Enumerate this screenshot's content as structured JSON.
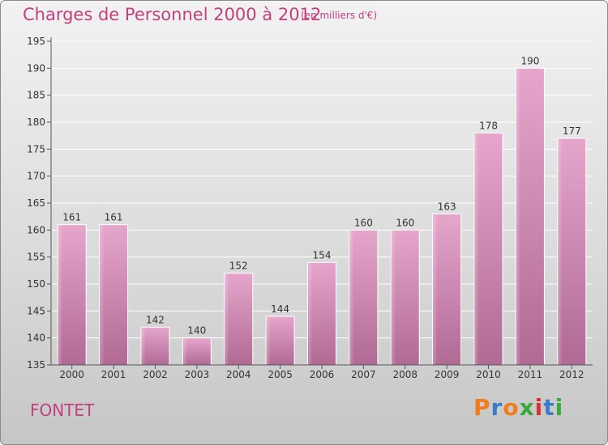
{
  "header": {
    "title": "Charges de Personnel 2000 à 2012",
    "subtitle": "(en milliers d'€)"
  },
  "footer": {
    "place": "FONTET",
    "logo_text": "Proxiti",
    "logo_colors": [
      "#f07c1a",
      "#3a7cc9",
      "#f07c1a",
      "#3aa83a",
      "#d9322b",
      "#3a7cc9",
      "#3aa83a"
    ]
  },
  "chart_data": {
    "type": "bar",
    "categories": [
      "2000",
      "2001",
      "2002",
      "2003",
      "2004",
      "2005",
      "2006",
      "2007",
      "2008",
      "2009",
      "2010",
      "2011",
      "2012"
    ],
    "values": [
      161,
      161,
      142,
      140,
      152,
      144,
      154,
      160,
      160,
      163,
      178,
      190,
      177
    ],
    "ylim": [
      135,
      195
    ],
    "yticks": [
      135,
      140,
      145,
      150,
      155,
      160,
      165,
      170,
      175,
      180,
      185,
      190,
      195
    ],
    "grid": true,
    "bar_color": "#d98cb6"
  }
}
